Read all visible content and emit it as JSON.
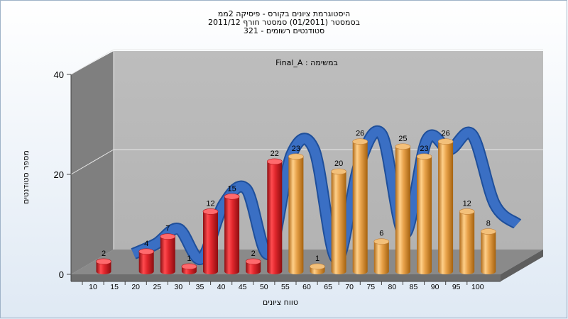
{
  "chart_data": {
    "type": "bar",
    "title": [
      "היסטוגרמת ציונים בקורס - פיסיקה 2ממ",
      "בסמסטר  (01/2011)  סמסטר חורף 2011/12",
      "321 - סטודנטים רשומים"
    ],
    "subtitle": "Final_A : במשימה",
    "xlabel": "טווח ציונים",
    "ylabel": "מספר סטודנטים",
    "ylim": [
      0,
      40
    ],
    "yticks": [
      "0",
      "20",
      "40"
    ],
    "categories": [
      "10",
      "15",
      "20",
      "25",
      "30",
      "35",
      "40",
      "45",
      "50",
      "55",
      "60",
      "65",
      "70",
      "75",
      "80",
      "85",
      "90",
      "95",
      "100"
    ],
    "values": [
      2,
      null,
      4,
      7,
      1,
      12,
      15,
      2,
      22,
      23,
      1,
      20,
      26,
      6,
      25,
      23,
      26,
      12,
      8
    ],
    "bar_labels": [
      "2",
      "",
      "4",
      "7",
      "1",
      "12",
      "15",
      "2",
      "22",
      "23",
      "1",
      "20",
      "26",
      "6",
      "25",
      "23",
      "26",
      "12",
      "8"
    ],
    "bar_colors": {
      "below_55": "#e0262c",
      "from_55": "#e8a24a"
    },
    "ribbon_color": "#3a6fc4",
    "ribbon_values": [
      2,
      4,
      7,
      1,
      12,
      15,
      2,
      22,
      23,
      1,
      20,
      26,
      6,
      25,
      23,
      26,
      12,
      8
    ],
    "grid": true
  }
}
